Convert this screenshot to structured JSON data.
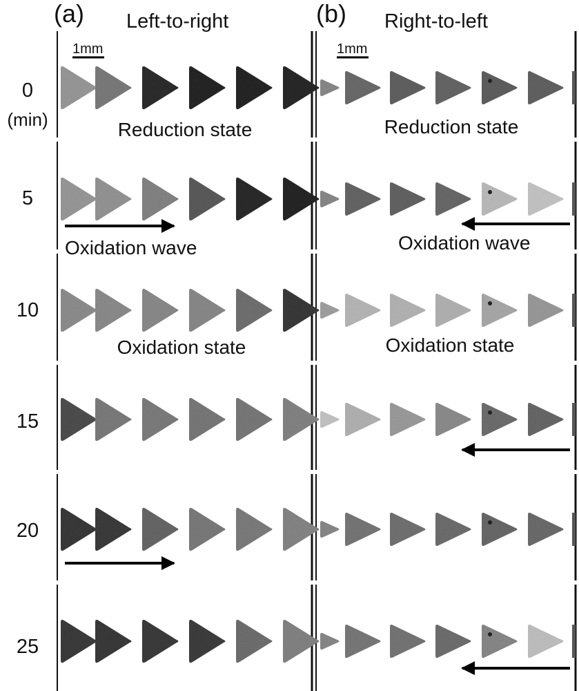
{
  "panels": [
    {
      "tag": "(a)",
      "title": "Left-to-right",
      "scale_label": "1mm",
      "direction": "left-to-right",
      "rows": [
        {
          "shades": [
            "#9a9a9a",
            "#7c7c7c",
            "#2e2e2e",
            "#262626",
            "#262626",
            "#2a2a2a"
          ]
        },
        {
          "shades": [
            "#9a9a9a",
            "#969696",
            "#858585",
            "#5c5c5c",
            "#2b2b2b",
            "#262626"
          ]
        },
        {
          "shades": [
            "#8f8f8f",
            "#8d8d8d",
            "#8c8c8c",
            "#8b8b8b",
            "#727272",
            "#3a3a3a"
          ]
        },
        {
          "shades": [
            "#4f4f4f",
            "#7d7d7d",
            "#7e7e7e",
            "#7a7a7a",
            "#7a7a7a",
            "#858585"
          ]
        },
        {
          "shades": [
            "#3a3a3a",
            "#3c3c3c",
            "#686868",
            "#7c7c7c",
            "#7e7e7e",
            "#878787"
          ]
        },
        {
          "shades": [
            "#3c3c3c",
            "#3a3a3a",
            "#3c3c3c",
            "#3e3e3e",
            "#707070",
            "#848484"
          ]
        }
      ]
    },
    {
      "tag": "(b)",
      "title": "Right-to-left",
      "scale_label": "1mm",
      "direction": "right-to-left",
      "rows": [
        {
          "shades": [
            "#8a8a8a",
            "#6c6c6c",
            "#626262",
            "#676767",
            "#606060",
            "#636363"
          ]
        },
        {
          "shades": [
            "#8a8a8a",
            "#676767",
            "#646464",
            "#6a6a6a",
            "#bdbdbd",
            "#c7c7c7"
          ]
        },
        {
          "shades": [
            "#a2a2a2",
            "#b9b9b9",
            "#b6b6b6",
            "#b4b4b4",
            "#ababab",
            "#9c9c9c"
          ]
        },
        {
          "shades": [
            "#c6c6c6",
            "#b4b4b4",
            "#9d9d9d",
            "#8e8e8e",
            "#6f6f6f",
            "#696969"
          ]
        },
        {
          "shades": [
            "#8a8a8a",
            "#787878",
            "#737373",
            "#6f6f6f",
            "#6a6a6a",
            "#6d6d6d"
          ]
        },
        {
          "shades": [
            "#8a8a8a",
            "#7a7a7a",
            "#777777",
            "#707070",
            "#8a8a8a",
            "#c2c2c2"
          ]
        }
      ]
    }
  ],
  "time_labels": [
    "0",
    "5",
    "10",
    "15",
    "20",
    "25"
  ],
  "time_unit": "(min)",
  "annotations": {
    "a_reduction": "Reduction state",
    "a_wave": "Oxidation wave",
    "a_oxidation": "Oxidation state",
    "b_reduction": "Reduction state",
    "b_wave": "Oxidation wave",
    "b_oxidation": "Oxidation state"
  },
  "arrows": {
    "a": [
      1,
      4
    ],
    "b": [
      1,
      3,
      5
    ]
  }
}
